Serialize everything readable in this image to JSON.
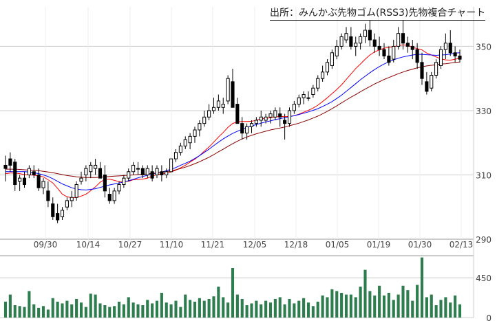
{
  "source_title": "出所：みんかぶ先物ゴム(RSS3)先物複合チャート",
  "chart_data": [
    {
      "type": "candlestick",
      "title": "出所：みんかぶ先物ゴム(RSS3)先物複合チャート",
      "y_ticks": [
        "350",
        "330",
        "310",
        "290"
      ],
      "ylim": [
        290,
        358
      ],
      "x_ticks": [
        "09/30",
        "10/14",
        "10/27",
        "11/10",
        "11/21",
        "12/05",
        "12/18",
        "01/05",
        "01/19",
        "01/30",
        "02/13"
      ],
      "candles": [
        [
          313,
          316,
          308,
          312
        ],
        [
          315,
          317,
          311,
          313
        ],
        [
          314,
          315,
          305,
          307
        ],
        [
          308,
          310,
          305,
          309
        ],
        [
          309,
          311,
          306,
          307
        ],
        [
          310,
          313,
          309,
          312
        ],
        [
          311,
          313,
          309,
          310
        ],
        [
          310,
          312,
          305,
          306
        ],
        [
          306,
          309,
          304,
          308
        ],
        [
          305,
          308,
          300,
          302
        ],
        [
          301,
          303,
          296,
          297
        ],
        [
          298,
          301,
          295,
          296
        ],
        [
          297,
          300,
          296,
          299
        ],
        [
          300,
          303,
          299,
          302
        ],
        [
          302,
          305,
          300,
          303
        ],
        [
          303,
          308,
          302,
          307
        ],
        [
          308,
          311,
          307,
          309
        ],
        [
          310,
          313,
          308,
          312
        ],
        [
          311,
          314,
          309,
          313
        ],
        [
          312,
          315,
          310,
          313
        ],
        [
          312,
          314,
          309,
          309
        ],
        [
          310,
          313,
          303,
          305
        ],
        [
          304,
          306,
          301,
          302
        ],
        [
          302,
          306,
          301,
          305
        ],
        [
          305,
          308,
          304,
          307
        ],
        [
          307,
          310,
          306,
          309
        ],
        [
          309,
          312,
          308,
          311
        ],
        [
          311,
          314,
          310,
          313
        ],
        [
          312,
          314,
          310,
          312
        ],
        [
          312,
          313,
          309,
          310
        ],
        [
          310,
          313,
          309,
          312
        ],
        [
          311,
          313,
          308,
          309
        ],
        [
          310,
          313,
          309,
          312
        ],
        [
          311,
          313,
          308,
          310
        ],
        [
          310,
          312,
          309,
          311
        ],
        [
          311,
          315,
          311,
          315
        ],
        [
          315,
          318,
          314,
          317
        ],
        [
          317,
          320,
          316,
          319
        ],
        [
          319,
          322,
          318,
          321
        ],
        [
          320,
          323,
          318,
          322
        ],
        [
          322,
          325,
          320,
          324
        ],
        [
          324,
          327,
          322,
          326
        ],
        [
          326,
          330,
          325,
          328
        ],
        [
          328,
          332,
          327,
          330
        ],
        [
          330,
          334,
          329,
          331
        ],
        [
          331,
          335,
          330,
          333
        ],
        [
          331,
          334,
          329,
          332
        ],
        [
          333,
          341,
          332,
          340
        ],
        [
          339,
          343,
          331,
          331
        ],
        [
          332,
          334,
          326,
          326
        ],
        [
          326,
          328,
          321,
          323
        ],
        [
          323,
          326,
          321,
          325
        ],
        [
          325,
          327,
          323,
          326
        ],
        [
          326,
          328,
          325,
          327
        ],
        [
          327,
          330,
          325,
          328
        ],
        [
          327,
          329,
          326,
          328
        ],
        [
          328,
          330,
          326,
          329
        ],
        [
          328,
          331,
          327,
          330
        ],
        [
          329,
          331,
          325,
          328
        ],
        [
          327,
          329,
          321,
          326
        ],
        [
          326,
          331,
          325,
          330
        ],
        [
          330,
          333,
          329,
          332
        ],
        [
          332,
          335,
          331,
          334
        ],
        [
          334,
          336,
          332,
          335
        ],
        [
          334,
          336,
          333,
          334
        ],
        [
          335,
          338,
          334,
          337
        ],
        [
          337,
          341,
          336,
          340
        ],
        [
          340,
          344,
          339,
          342
        ],
        [
          342,
          346,
          341,
          345
        ],
        [
          344,
          349,
          343,
          348
        ],
        [
          347,
          352,
          346,
          350
        ],
        [
          350,
          354,
          349,
          353
        ],
        [
          352,
          356,
          351,
          354
        ],
        [
          353,
          356,
          349,
          350
        ],
        [
          350,
          353,
          347,
          351
        ],
        [
          351,
          354,
          349,
          353
        ],
        [
          353,
          357,
          351,
          355
        ],
        [
          355,
          358,
          350,
          352
        ],
        [
          352,
          354,
          348,
          350
        ],
        [
          350,
          353,
          347,
          349
        ],
        [
          349,
          351,
          346,
          347
        ],
        [
          347,
          350,
          344,
          345
        ],
        [
          346,
          352,
          345,
          350
        ],
        [
          350,
          356,
          349,
          354
        ],
        [
          354,
          358,
          349,
          351
        ],
        [
          351,
          353,
          348,
          350
        ],
        [
          350,
          352,
          346,
          349
        ],
        [
          349,
          351,
          343,
          345
        ],
        [
          345,
          348,
          338,
          340
        ],
        [
          339,
          342,
          335,
          336
        ],
        [
          337,
          342,
          336,
          341
        ],
        [
          341,
          346,
          340,
          345
        ],
        [
          344,
          350,
          343,
          349
        ],
        [
          349,
          354,
          346,
          351
        ],
        [
          351,
          355,
          347,
          348
        ],
        [
          348,
          350,
          345,
          347
        ],
        [
          347,
          349,
          345,
          346
        ]
      ],
      "volume_ticks": [
        "450",
        "0"
      ],
      "volume_ylim": [
        0,
        700
      ],
      "volume": [
        180,
        260,
        140,
        130,
        120,
        300,
        150,
        110,
        130,
        90,
        220,
        180,
        160,
        190,
        150,
        210,
        170,
        120,
        270,
        260,
        160,
        140,
        120,
        130,
        180,
        150,
        230,
        170,
        150,
        140,
        200,
        160,
        190,
        280,
        170,
        150,
        190,
        120,
        260,
        200,
        180,
        220,
        190,
        210,
        240,
        350,
        230,
        170,
        560,
        260,
        210,
        140,
        160,
        190,
        150,
        190,
        170,
        210,
        230,
        150,
        210,
        160,
        190,
        220,
        170,
        130,
        180,
        250,
        230,
        320,
        300,
        280,
        260,
        260,
        230,
        350,
        540,
        300,
        250,
        360,
        250,
        280,
        200,
        260,
        360,
        310,
        190,
        370,
        680,
        230,
        260,
        140,
        200,
        230,
        170,
        250,
        150
      ],
      "series": [
        {
          "type": "ma",
          "color": "#ff0000",
          "values": [
            310.4,
            310.6,
            310.6,
            310.4,
            310.1,
            310.0,
            309.9,
            309.7,
            309.4,
            308.5,
            307.5,
            305.8,
            304.0,
            303.2,
            302.9,
            303.0,
            303.4,
            304.0,
            305.1,
            306.3,
            307.7,
            308.6,
            308.7,
            308.3,
            307.9,
            308.0,
            308.0,
            308.5,
            308.6,
            308.7,
            309.0,
            309.6,
            310.1,
            310.3,
            310.6,
            310.9,
            311.5,
            312.2,
            313.0,
            314.0,
            314.9,
            316.0,
            317.4,
            318.7,
            320.2,
            321.8,
            323.2,
            324.8,
            326.0,
            326.5,
            326.6,
            326.6,
            326.7,
            327.0,
            327.5,
            327.6,
            327.8,
            328.0,
            328.2,
            328.1,
            328.2,
            328.4,
            328.9,
            329.5,
            330.1,
            330.8,
            331.7,
            332.8,
            334.0,
            335.3,
            336.6,
            338.0,
            339.7,
            341.4,
            343.1,
            344.5,
            346.0,
            347.3,
            348.3,
            348.9,
            349.4,
            349.7,
            349.9,
            350.2,
            350.5,
            350.3,
            349.7,
            349.3,
            348.9,
            347.9,
            347.3,
            346.7,
            346.1,
            345.8,
            345.7,
            346.0,
            346.3
          ]
        },
        {
          "type": "ma",
          "color": "#0000ff",
          "values": [
            311.0,
            311.0,
            311.0,
            311.0,
            311.0,
            310.9,
            310.7,
            310.4,
            310.0,
            309.5,
            308.8,
            308.0,
            307.2,
            306.6,
            306.0,
            305.6,
            305.4,
            305.3,
            305.5,
            305.7,
            306.1,
            306.5,
            306.9,
            307.2,
            307.5,
            307.8,
            308.2,
            308.6,
            309.1,
            309.5,
            309.9,
            310.2,
            310.6,
            310.9,
            311.3,
            311.8,
            312.3,
            313.0,
            313.6,
            314.3,
            315.1,
            316.0,
            317.0,
            318.0,
            319.1,
            320.2,
            321.2,
            322.1,
            322.9,
            323.6,
            324.2,
            324.7,
            325.2,
            325.7,
            326.1,
            326.5,
            326.8,
            327.2,
            327.5,
            327.8,
            328.1,
            328.4,
            328.8,
            329.2,
            329.6,
            330.1,
            330.6,
            331.3,
            332.0,
            332.8,
            333.8,
            334.8,
            336.0,
            337.2,
            338.4,
            339.6,
            340.7,
            341.8,
            342.8,
            343.7,
            344.5,
            345.2,
            345.8,
            346.3,
            346.7,
            347.0,
            347.3,
            347.5,
            347.5,
            347.4,
            347.3,
            347.2,
            347.3,
            347.4,
            347.6,
            347.9,
            348.0
          ]
        },
        {
          "type": "ma",
          "color": "#8b0000",
          "values": [
            311.8,
            311.8,
            311.8,
            311.7,
            311.6,
            311.5,
            311.4,
            311.3,
            311.1,
            310.9,
            310.7,
            310.4,
            310.1,
            309.8,
            309.6,
            309.4,
            309.3,
            309.2,
            309.2,
            309.2,
            309.3,
            309.4,
            309.5,
            309.6,
            309.7,
            309.8,
            309.9,
            310.0,
            310.1,
            310.2,
            310.3,
            310.5,
            310.6,
            310.8,
            311.0,
            311.3,
            311.6,
            312.0,
            312.4,
            312.9,
            313.5,
            314.1,
            314.8,
            315.5,
            316.3,
            317.2,
            318.0,
            318.9,
            319.7,
            320.5,
            321.2,
            321.8,
            322.3,
            322.8,
            323.2,
            323.6,
            324.0,
            324.3,
            324.6,
            324.9,
            325.3,
            325.7,
            326.1,
            326.6,
            327.1,
            327.7,
            328.3,
            329.0,
            329.8,
            330.6,
            331.5,
            332.4,
            333.3,
            334.2,
            335.0,
            335.9,
            336.7,
            337.5,
            338.3,
            339.0,
            339.7,
            340.3,
            340.9,
            341.5,
            342.0,
            342.5,
            342.9,
            343.3,
            343.6,
            343.9,
            344.1,
            344.3,
            344.5,
            344.6,
            344.8,
            345.0,
            345.1
          ]
        }
      ]
    }
  ]
}
